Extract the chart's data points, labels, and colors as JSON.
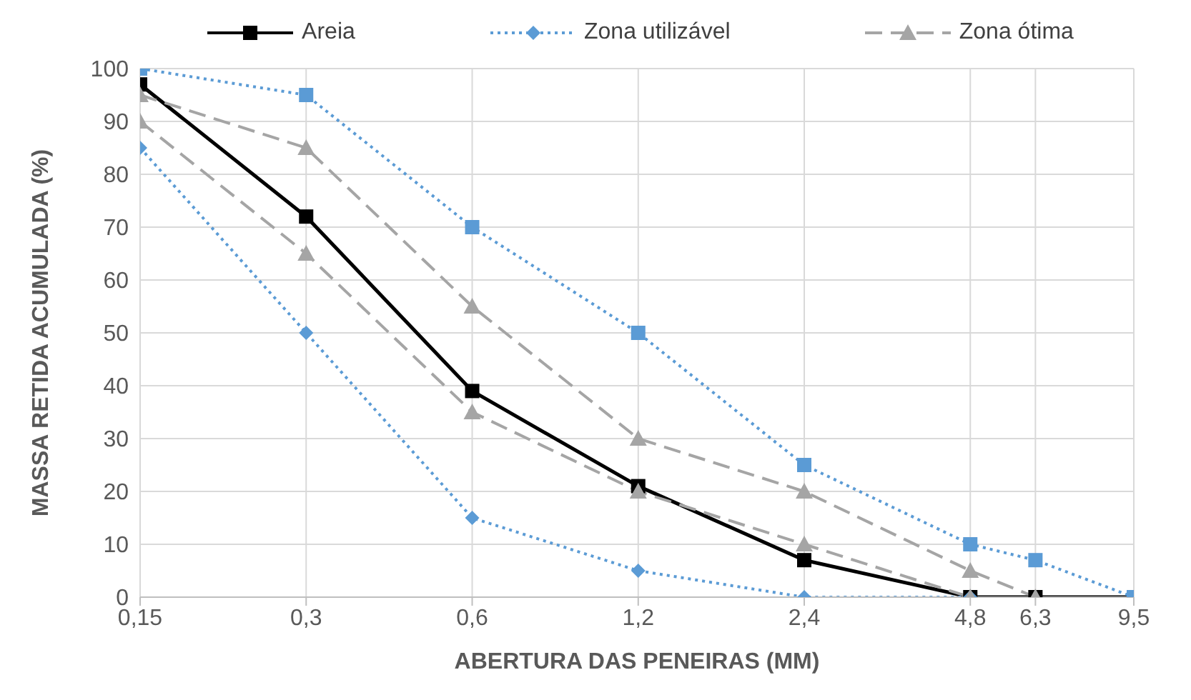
{
  "chart_data": {
    "type": "line",
    "xlabel": "ABERTURA DAS PENEIRAS (MM)",
    "ylabel": "MASSA RETIDA ACUMULADA (%)",
    "log": "x",
    "xlim": [
      0.15,
      9.5
    ],
    "xticks": [
      {
        "value": 0.15,
        "label": "0,15"
      },
      {
        "value": 0.3,
        "label": "0,3"
      },
      {
        "value": 0.6,
        "label": "0,6"
      },
      {
        "value": 1.2,
        "label": "1,2"
      },
      {
        "value": 2.4,
        "label": "2,4"
      },
      {
        "value": 4.8,
        "label": "4,8"
      },
      {
        "value": 6.3,
        "label": "6,3"
      },
      {
        "value": 9.5,
        "label": "9,5"
      }
    ],
    "ylim": [
      0,
      100
    ],
    "yticks": [
      0,
      10,
      20,
      30,
      40,
      50,
      60,
      70,
      80,
      90,
      100
    ],
    "grid": true,
    "legend": "top",
    "series": [
      {
        "name": "Areia",
        "color": "#000000",
        "marker": "square",
        "line_style": "solid",
        "x": [
          0.15,
          0.3,
          0.6,
          1.2,
          2.4,
          4.8,
          6.3,
          9.5
        ],
        "values": [
          97,
          72,
          39,
          21,
          7,
          0,
          0,
          0
        ]
      },
      {
        "name": "Zona utilizável",
        "color": "#5b9bd5",
        "marker": "diamond",
        "line_style": "dotted",
        "x": [
          0.15,
          0.3,
          0.6,
          1.2,
          2.4,
          4.8
        ],
        "values": [
          85,
          50,
          15,
          5,
          0,
          0
        ]
      },
      {
        "color": "#5b9bd5",
        "marker": "square",
        "line_style": "dotted",
        "x": [
          0.15,
          0.3,
          0.6,
          1.2,
          2.4,
          4.8,
          6.3,
          9.5
        ],
        "values": [
          100,
          95,
          70,
          50,
          25,
          10,
          7,
          0
        ]
      },
      {
        "name": "Zona ótima",
        "color": "#a5a5a5",
        "marker": "triangle",
        "line_style": "dashed",
        "x": [
          0.15,
          0.3,
          0.6,
          1.2,
          2.4,
          4.8
        ],
        "values": [
          90,
          65,
          35,
          20,
          10,
          0
        ]
      },
      {
        "color": "#a5a5a5",
        "marker": "triangle",
        "line_style": "dashed",
        "x": [
          0.15,
          0.3,
          0.6,
          1.2,
          2.4,
          4.8,
          6.3
        ],
        "values": [
          95,
          85,
          55,
          30,
          20,
          5,
          0
        ]
      }
    ]
  }
}
